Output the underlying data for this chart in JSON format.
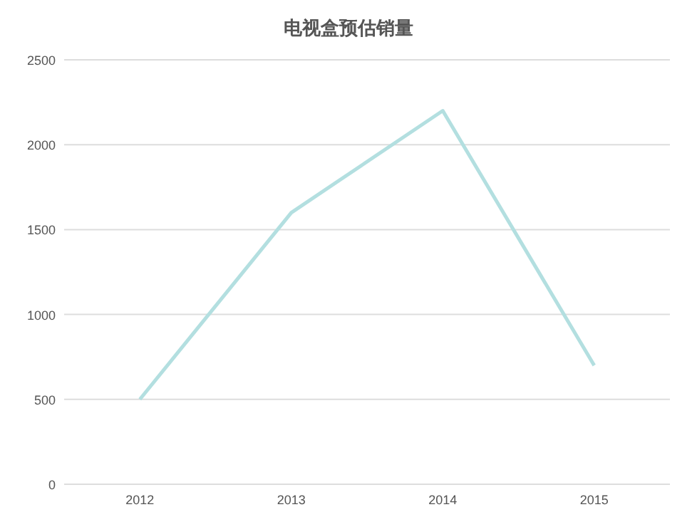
{
  "chart_data": {
    "type": "line",
    "title": "电视盒预估销量",
    "categories": [
      "2012",
      "2013",
      "2014",
      "2015"
    ],
    "series": [
      {
        "color": "#b3dfe0",
        "values": [
          500,
          1600,
          2200,
          700
        ]
      }
    ],
    "ylim": [
      0,
      2500
    ],
    "yticks": [
      0,
      500,
      1000,
      1500,
      2000,
      2500
    ],
    "grid": "y",
    "marker": "none",
    "line_style": "solid"
  }
}
